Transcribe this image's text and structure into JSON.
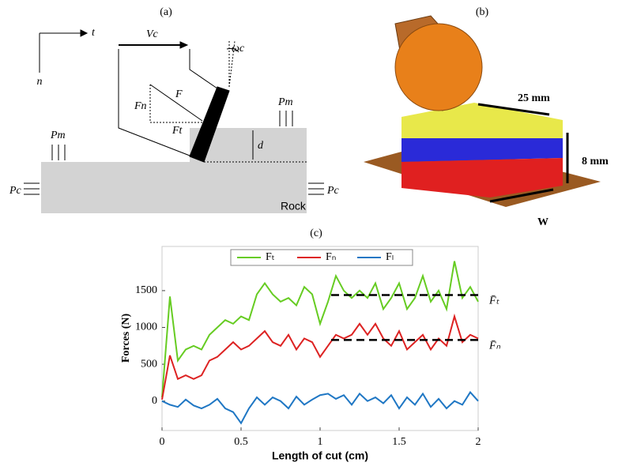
{
  "panel_a": {
    "label": "(a)",
    "t": "t",
    "n": "n",
    "vc": "Vc",
    "omega": "ωc",
    "f": "F",
    "fn": "Fn",
    "ft": "Ft",
    "pm_right": "Pm",
    "pm_left": "Pm",
    "d": "d",
    "pc_left": "Pc",
    "pc_right": "Pc",
    "rock": "Rock"
  },
  "panel_b": {
    "label": "(b)",
    "length": "25 mm",
    "height": "8 mm",
    "width": "W"
  },
  "chart_data": {
    "type": "line",
    "title": "(c)",
    "x_label": "Length of cut (cm)",
    "y_label": "Forces (N)",
    "x": [
      0,
      0.05,
      0.1,
      0.15,
      0.2,
      0.25,
      0.3,
      0.35,
      0.4,
      0.45,
      0.5,
      0.55,
      0.6,
      0.65,
      0.7,
      0.75,
      0.8,
      0.85,
      0.9,
      0.95,
      1,
      1.05,
      1.1,
      1.15,
      1.2,
      1.25,
      1.3,
      1.35,
      1.4,
      1.45,
      1.5,
      1.55,
      1.6,
      1.65,
      1.7,
      1.75,
      1.8,
      1.85,
      1.9,
      1.95,
      2
    ],
    "series": [
      {
        "name": "Fₜ",
        "color": "#66cc22",
        "values": [
          50,
          1420,
          550,
          700,
          750,
          700,
          900,
          1000,
          1100,
          1050,
          1150,
          1100,
          1450,
          1600,
          1450,
          1350,
          1400,
          1300,
          1550,
          1450,
          1050,
          1350,
          1700,
          1500,
          1400,
          1500,
          1400,
          1600,
          1250,
          1400,
          1600,
          1250,
          1400,
          1700,
          1350,
          1500,
          1250,
          1900,
          1400,
          1550,
          1350
        ]
      },
      {
        "name": "Fₙ",
        "color": "#dd2222",
        "values": [
          20,
          620,
          300,
          350,
          300,
          350,
          550,
          600,
          700,
          800,
          700,
          750,
          850,
          950,
          800,
          750,
          900,
          700,
          850,
          800,
          600,
          750,
          900,
          850,
          900,
          1050,
          900,
          1050,
          850,
          750,
          950,
          700,
          800,
          900,
          700,
          850,
          750,
          1150,
          800,
          900,
          850
        ]
      },
      {
        "name": "Fₗ",
        "color": "#1f77c4",
        "values": [
          0,
          -50,
          -80,
          20,
          -60,
          -100,
          -50,
          30,
          -100,
          -150,
          -300,
          -100,
          50,
          -50,
          50,
          0,
          -100,
          60,
          -50,
          20,
          80,
          100,
          30,
          80,
          -50,
          100,
          0,
          50,
          -30,
          80,
          -100,
          50,
          -50,
          100,
          -80,
          30,
          -100,
          0,
          -50,
          120,
          0
        ]
      }
    ],
    "mean_lines": [
      {
        "label": "F̄ₜ",
        "y": 1440,
        "x": [
          1.07,
          2
        ]
      },
      {
        "label": "F̄ₙ",
        "y": 830,
        "x": [
          1.07,
          2
        ]
      }
    ],
    "xlim": [
      0,
      2
    ],
    "ylim": [
      -400,
      2100
    ],
    "xticks": [
      0,
      0.5,
      1,
      1.5,
      2
    ],
    "yticks": [
      0,
      500,
      1000,
      1500
    ],
    "grid": false
  }
}
